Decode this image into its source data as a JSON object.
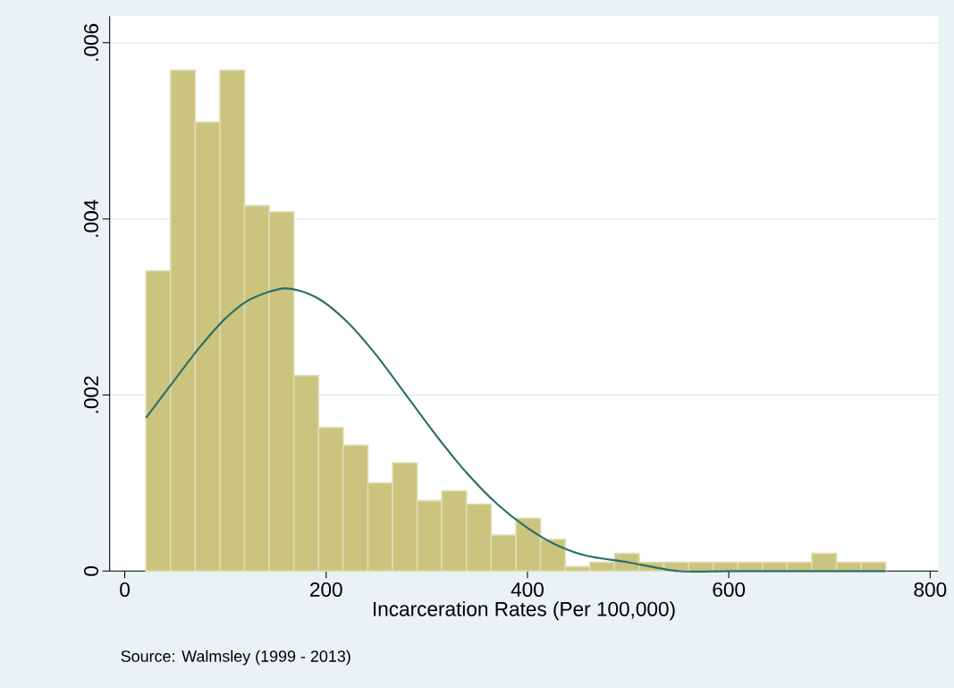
{
  "chart_data": {
    "type": "histogram",
    "xlabel": "Incarceration Rates (Per 100,000)",
    "annotations": [
      "Source: Walmsley (1999 - 2013)"
    ],
    "series": [
      {
        "color": "#cbc47f",
        "bins": [
          21,
          45.5,
          70,
          94.5,
          119,
          143.5,
          168,
          192.5,
          217,
          241.5,
          266,
          290.5,
          315,
          339.5,
          364,
          388.5,
          413,
          437.5,
          462,
          486.5,
          511,
          535.5,
          560,
          584.5,
          609,
          633.5,
          658,
          682.5,
          707,
          731.5,
          756
        ],
        "values": [
          0.00341,
          0.00569,
          0.0051,
          0.00569,
          0.00415,
          0.00408,
          0.00222,
          0.00163,
          0.00143,
          0.001,
          0.00123,
          0.0008,
          0.00091,
          0.00076,
          0.00041,
          0.0006,
          0.00036,
          5e-05,
          0.0001,
          0.0002,
          0.0001,
          0.0001,
          0.0001,
          0.0001,
          0.0001,
          0.0001,
          0.0001,
          0.0002,
          0.0001,
          0.0001
        ]
      },
      {
        "type": "line",
        "color": "#2a6f6a",
        "x": [
          21,
          50,
          75,
          100,
          125,
          159,
          190,
          220,
          250,
          280,
          310,
          340,
          370,
          400,
          430,
          460,
          500,
          550,
          600,
          650,
          700,
          756
        ],
        "values": [
          0.00174,
          0.00218,
          0.00255,
          0.00287,
          0.00309,
          0.00321,
          0.00311,
          0.00284,
          0.00245,
          0.00199,
          0.00153,
          0.00111,
          0.00076,
          0.00049,
          0.00029,
          0.00017,
          0.0001,
          0,
          0,
          0,
          0,
          0
        ]
      }
    ],
    "xlim": [
      -15,
      808
    ],
    "ylim": [
      0,
      0.0063
    ],
    "xticks": [
      0,
      200,
      400,
      600,
      800
    ],
    "yticks": [
      0,
      {
        "value": 0.002,
        "label": ".002"
      },
      {
        "value": 0.004,
        "label": ".004"
      },
      {
        "value": 0.006,
        "label": ".006"
      }
    ],
    "grid": "y",
    "marker": "none",
    "line_style": "solid"
  }
}
